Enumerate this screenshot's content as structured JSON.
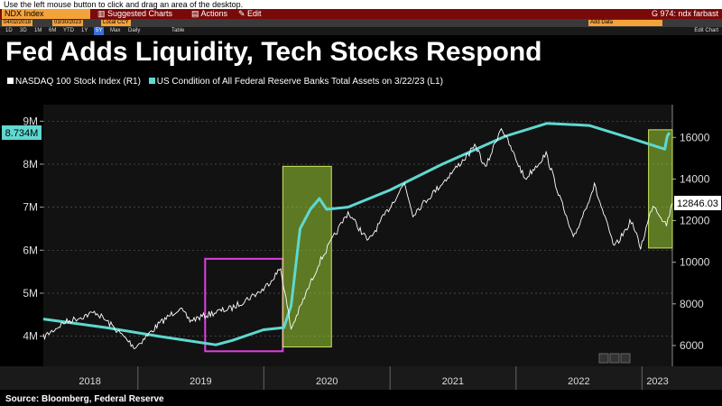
{
  "terminal": {
    "hint": "Use the left mouse button to click and drag an area of the desktop.",
    "ticker": "NDX Index",
    "menu": [
      "Suggested Charts",
      "Actions",
      "Edit"
    ],
    "command": "G 974: ndx farbast",
    "start_date": "04/02/2018",
    "end_date": "03/30/2023",
    "currency": "Local CCY",
    "adds_data": "Add Data",
    "periods": [
      "1D",
      "3D",
      "1M",
      "6M",
      "YTD",
      "1Y",
      "5Y",
      "Max",
      "Daily",
      "Table"
    ],
    "active_period": "5Y",
    "tools": "Edit Chart"
  },
  "title": "Fed Adds Liquidity, Tech Stocks Respond",
  "legend": [
    {
      "label": "NASDAQ 100 Stock Index  (R1)",
      "color": "#ffffff"
    },
    {
      "label": "US Condition of All Federal Reserve Banks Total Assets  on 3/22/23 (L1)",
      "color": "#5fd8d0"
    }
  ],
  "source": "Source: Bloomberg, Federal Reserve",
  "colors": {
    "background": "#000000",
    "fed": "#5fd8d0",
    "ndx": "#ffffff",
    "magenta": "#e040e0",
    "highlight": "#9acd32"
  },
  "chart_data": {
    "type": "line",
    "x_ticks": [
      "2018",
      "2019",
      "2020",
      "2021",
      "2022",
      "2023"
    ],
    "xlim": [
      "2018-04-02",
      "2023-03-30"
    ],
    "left_axis": {
      "ticks": [
        "4M",
        "5M",
        "6M",
        "7M",
        "8M",
        "9M"
      ],
      "values": [
        4,
        5,
        6,
        7,
        8,
        9
      ],
      "ylim": [
        3.3,
        9.3
      ],
      "unit": "M"
    },
    "right_axis": {
      "ticks": [
        "6000",
        "8000",
        "10000",
        "12000",
        "14000",
        "16000"
      ],
      "values": [
        6000,
        8000,
        10000,
        12000,
        14000,
        16000
      ],
      "ylim": [
        5000,
        17400
      ]
    },
    "labels": {
      "left_last": "8.734M",
      "right_last": "12846.03"
    },
    "series": [
      {
        "name": "US Condition of All Federal Reserve Banks Total Assets",
        "axis": "left",
        "points": [
          [
            "2018-04-02",
            4.4
          ],
          [
            "2018-10-01",
            4.2
          ],
          [
            "2019-03-01",
            4.0
          ],
          [
            "2019-08-15",
            3.8
          ],
          [
            "2019-10-01",
            3.9
          ],
          [
            "2019-12-31",
            4.15
          ],
          [
            "2020-02-28",
            4.2
          ],
          [
            "2020-03-20",
            4.7
          ],
          [
            "2020-04-15",
            6.5
          ],
          [
            "2020-05-15",
            6.95
          ],
          [
            "2020-06-10",
            7.2
          ],
          [
            "2020-07-01",
            6.95
          ],
          [
            "2020-09-01",
            7.0
          ],
          [
            "2021-01-01",
            7.4
          ],
          [
            "2021-06-01",
            8.0
          ],
          [
            "2021-12-01",
            8.65
          ],
          [
            "2022-04-01",
            8.95
          ],
          [
            "2022-08-01",
            8.9
          ],
          [
            "2022-12-01",
            8.6
          ],
          [
            "2023-03-08",
            8.35
          ],
          [
            "2023-03-15",
            8.65
          ],
          [
            "2023-03-22",
            8.734
          ]
        ]
      },
      {
        "name": "NASDAQ 100 Stock Index",
        "axis": "right",
        "points": [
          [
            "2018-04-02",
            6400
          ],
          [
            "2018-06-01",
            7100
          ],
          [
            "2018-09-01",
            7600
          ],
          [
            "2018-10-15",
            7000
          ],
          [
            "2018-12-24",
            5900
          ],
          [
            "2019-03-01",
            7000
          ],
          [
            "2019-05-01",
            7800
          ],
          [
            "2019-06-01",
            7200
          ],
          [
            "2019-08-15",
            7600
          ],
          [
            "2019-10-01",
            7800
          ],
          [
            "2019-12-31",
            8700
          ],
          [
            "2020-02-19",
            9700
          ],
          [
            "2020-03-20",
            6800
          ],
          [
            "2020-06-10",
            10000
          ],
          [
            "2020-09-01",
            12400
          ],
          [
            "2020-10-30",
            11000
          ],
          [
            "2021-02-12",
            13800
          ],
          [
            "2021-03-08",
            12300
          ],
          [
            "2021-06-01",
            13800
          ],
          [
            "2021-09-07",
            15600
          ],
          [
            "2021-10-04",
            14500
          ],
          [
            "2021-11-19",
            16500
          ],
          [
            "2022-01-27",
            14000
          ],
          [
            "2022-03-29",
            15200
          ],
          [
            "2022-06-16",
            11100
          ],
          [
            "2022-08-16",
            13700
          ],
          [
            "2022-10-13",
            10700
          ],
          [
            "2022-12-01",
            12000
          ],
          [
            "2022-12-28",
            10700
          ],
          [
            "2023-02-02",
            12800
          ],
          [
            "2023-03-13",
            11800
          ],
          [
            "2023-03-30",
            12846
          ]
        ]
      }
    ],
    "annotations": [
      {
        "type": "box",
        "color": "magenta",
        "from": "2019-07-15",
        "to": "2020-02-25",
        "axis": "left",
        "y_range": [
          3.65,
          5.8
        ]
      },
      {
        "type": "box",
        "color": "green",
        "from": "2020-02-25",
        "to": "2020-07-15",
        "axis": "left",
        "y_range": [
          3.75,
          7.95
        ]
      },
      {
        "type": "box",
        "color": "green",
        "from": "2023-01-20",
        "to": "2023-03-30",
        "axis": "left",
        "y_range": [
          6.05,
          8.8
        ]
      }
    ]
  }
}
